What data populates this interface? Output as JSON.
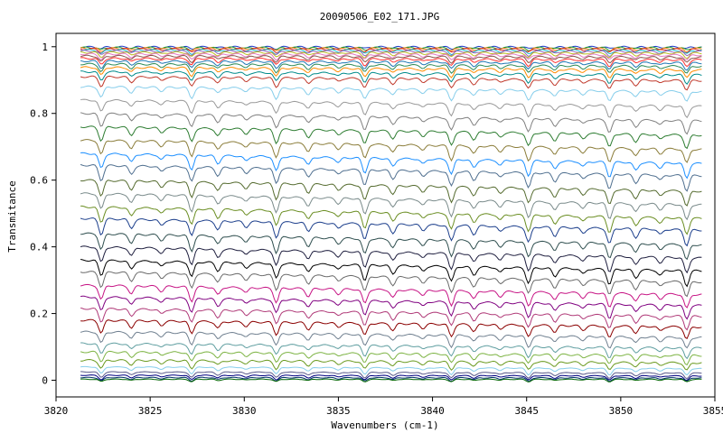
{
  "chart_data": {
    "type": "line",
    "title": "20090506_E02_171.JPG",
    "xlabel": "Wavenumbers (cm-1)",
    "ylabel": "Transmitance",
    "xlim": [
      3820,
      3855
    ],
    "ylim": [
      -0.05,
      1.04
    ],
    "xticks": [
      3820,
      3825,
      3830,
      3835,
      3840,
      3845,
      3850,
      3855
    ],
    "xtick_labels": [
      "3820",
      "3825",
      "3830",
      "3835",
      "3840",
      "3845",
      "3850",
      "3855"
    ],
    "yticks": [
      0,
      0.2,
      0.4,
      0.6,
      0.8,
      1
    ],
    "ytick_labels": [
      "0",
      "0.2",
      "0.4",
      "0.6",
      "0.8",
      "1"
    ],
    "grid": false,
    "legend": "none",
    "x_range_of_data": [
      3821.3,
      3854.3
    ],
    "absorption_lines_cm1": [
      3822.4,
      3824.0,
      3825.6,
      3827.2,
      3828.6,
      3830.1,
      3831.7,
      3833.4,
      3835.0,
      3836.4,
      3837.9,
      3839.5,
      3841.0,
      3842.2,
      3843.6,
      3845.1,
      3846.5,
      3848.0,
      3849.4,
      3850.8,
      3852.1,
      3853.5
    ],
    "series": [
      {
        "level": 0.999,
        "color": "#1f3cc8"
      },
      {
        "level": 0.997,
        "color": "#2ca02c"
      },
      {
        "level": 0.995,
        "color": "#ff7f0e"
      },
      {
        "level": 0.993,
        "color": "#d62728"
      },
      {
        "level": 0.99,
        "color": "#17becf"
      },
      {
        "level": 0.987,
        "color": "#9467bd"
      },
      {
        "level": 0.983,
        "color": "#bcbd22"
      },
      {
        "level": 0.978,
        "color": "#e377c2"
      },
      {
        "level": 0.972,
        "color": "#8c564b"
      },
      {
        "level": 0.965,
        "color": "#ff3030"
      },
      {
        "level": 0.957,
        "color": "#1f77b4"
      },
      {
        "level": 0.948,
        "color": "#2e8b57"
      },
      {
        "level": 0.938,
        "color": "#ff8c00"
      },
      {
        "level": 0.925,
        "color": "#008b8b"
      },
      {
        "level": 0.91,
        "color": "#c0392b"
      },
      {
        "level": 0.88,
        "color": "#87ceeb"
      },
      {
        "level": 0.84,
        "color": "#999999"
      },
      {
        "level": 0.8,
        "color": "#808080"
      },
      {
        "level": 0.76,
        "color": "#2e7d32"
      },
      {
        "level": 0.72,
        "color": "#8b7d3a"
      },
      {
        "level": 0.68,
        "color": "#1e90ff"
      },
      {
        "level": 0.645,
        "color": "#4f6f8f"
      },
      {
        "level": 0.6,
        "color": "#556b2f"
      },
      {
        "level": 0.56,
        "color": "#7a8b8b"
      },
      {
        "level": 0.52,
        "color": "#6b8e23"
      },
      {
        "level": 0.485,
        "color": "#1c3f8c"
      },
      {
        "level": 0.44,
        "color": "#2f4f4f"
      },
      {
        "level": 0.4,
        "color": "#1f1f3f"
      },
      {
        "level": 0.36,
        "color": "#000000"
      },
      {
        "level": 0.325,
        "color": "#6a6a6a"
      },
      {
        "level": 0.285,
        "color": "#c71585"
      },
      {
        "level": 0.25,
        "color": "#800080"
      },
      {
        "level": 0.215,
        "color": "#b03a78"
      },
      {
        "level": 0.18,
        "color": "#8b0000"
      },
      {
        "level": 0.145,
        "color": "#708090"
      },
      {
        "level": 0.11,
        "color": "#5f9ea0"
      },
      {
        "level": 0.085,
        "color": "#7cb342"
      },
      {
        "level": 0.06,
        "color": "#6a9a1f"
      },
      {
        "level": 0.04,
        "color": "#87ceeb"
      },
      {
        "level": 0.025,
        "color": "#5a5a8a"
      },
      {
        "level": 0.015,
        "color": "#000080"
      },
      {
        "level": 0.008,
        "color": "#003366"
      },
      {
        "level": 0.003,
        "color": "#006400"
      }
    ]
  }
}
